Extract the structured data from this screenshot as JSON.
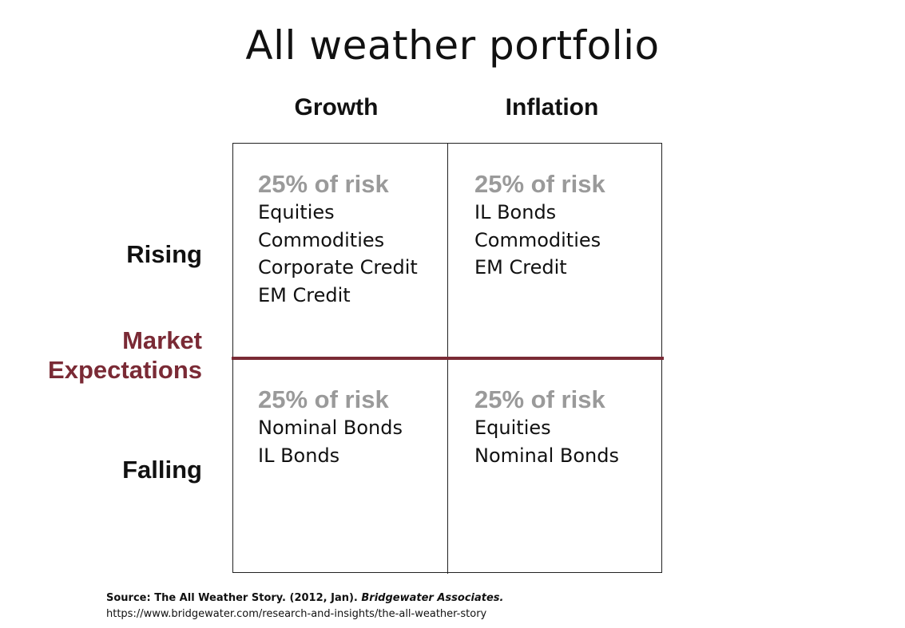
{
  "title": "All weather portfolio",
  "columns": {
    "growth": "Growth",
    "inflation": "Inflation"
  },
  "rows": {
    "rising": "Rising",
    "falling": "Falling"
  },
  "axis_label": {
    "line1": "Market",
    "line2": "Expectations"
  },
  "quadrants": {
    "rising_growth": {
      "risk": "25% of risk",
      "assets": [
        "Equities",
        "Commodities",
        "Corporate Credit",
        "EM Credit"
      ]
    },
    "rising_inflation": {
      "risk": "25% of risk",
      "assets": [
        "IL Bonds",
        "Commodities",
        "EM Credit"
      ]
    },
    "falling_growth": {
      "risk": "25% of risk",
      "assets": [
        "Nominal Bonds",
        "IL Bonds"
      ]
    },
    "falling_inflation": {
      "risk": "25% of risk",
      "assets": [
        "Equities",
        "Nominal Bonds"
      ]
    }
  },
  "source": {
    "prefix": "Source: The All Weather Story. (2012, Jan). ",
    "publisher": "Bridgewater Associates.",
    "url": "https://www.bridgewater.com/research-and-insights/the-all-weather-story"
  },
  "colors": {
    "accent": "#7a2a35",
    "risk_text": "#9a9a9a",
    "line": "#222222"
  }
}
